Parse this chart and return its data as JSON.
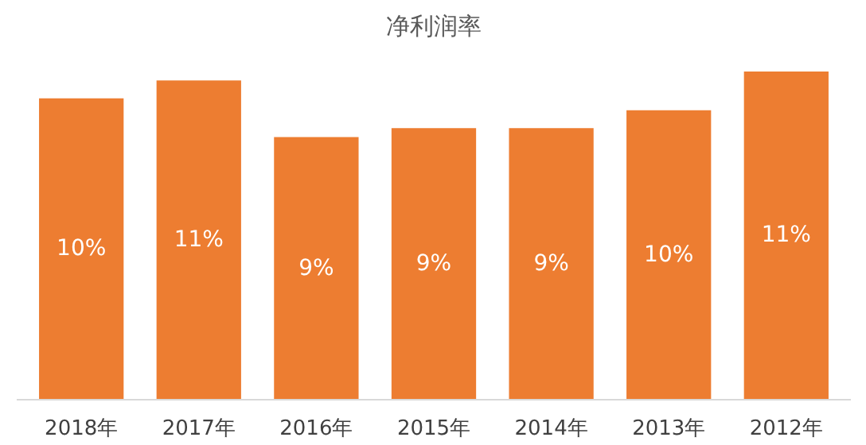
{
  "chart_data": {
    "type": "bar",
    "title": "净利润率",
    "categories": [
      "2018年",
      "2017年",
      "2016年",
      "2015年",
      "2014年",
      "2013年",
      "2012年"
    ],
    "values": [
      10.1,
      10.7,
      8.8,
      9.1,
      9.1,
      9.7,
      11.0
    ],
    "value_labels": [
      "10%",
      "11%",
      "9%",
      "9%",
      "9%",
      "10%",
      "11%"
    ],
    "color": "#ed7d31",
    "grid": false
  }
}
